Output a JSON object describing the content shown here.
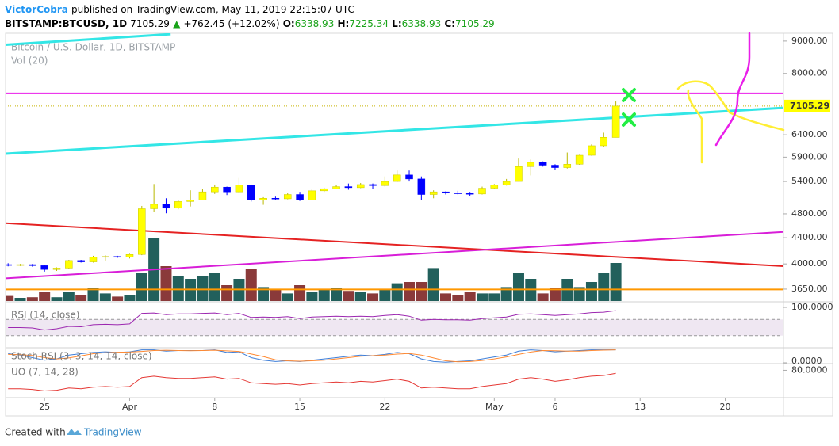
{
  "header": {
    "author": "VictorCobra",
    "published": "published on TradingView.com, May 11, 2019 22:15:07 UTC",
    "symbol": "BITSTAMP:BTCUSD, 1D",
    "change": "+762.45 (+12.02%)",
    "open_label": "O:",
    "high_label": "H:",
    "low_label": "L:",
    "close_label": "C:"
  },
  "footer": {
    "created": "Created with",
    "brand": "TradingView"
  },
  "chart_data": {
    "type": "candlestick",
    "title": "Bitcoin / U.S. Dollar, 1D, BITSTAMP",
    "volume_label": "Vol (20)",
    "x": [
      "2019-03-22",
      "2019-03-23",
      "2019-03-24",
      "2019-03-25",
      "2019-03-26",
      "2019-03-27",
      "2019-03-28",
      "2019-03-29",
      "2019-03-30",
      "2019-03-31",
      "2019-04-01",
      "2019-04-02",
      "2019-04-03",
      "2019-04-04",
      "2019-04-05",
      "2019-04-06",
      "2019-04-07",
      "2019-04-08",
      "2019-04-09",
      "2019-04-10",
      "2019-04-11",
      "2019-04-12",
      "2019-04-13",
      "2019-04-14",
      "2019-04-15",
      "2019-04-16",
      "2019-04-17",
      "2019-04-18",
      "2019-04-19",
      "2019-04-20",
      "2019-04-21",
      "2019-04-22",
      "2019-04-23",
      "2019-04-24",
      "2019-04-25",
      "2019-04-26",
      "2019-04-27",
      "2019-04-28",
      "2019-04-29",
      "2019-04-30",
      "2019-05-01",
      "2019-05-02",
      "2019-05-03",
      "2019-05-04",
      "2019-05-05",
      "2019-05-06",
      "2019-05-07",
      "2019-05-08",
      "2019-05-09",
      "2019-05-10",
      "2019-05-11"
    ],
    "open": [
      3990,
      3985,
      3990,
      3975,
      3920,
      3940,
      4050,
      4030,
      4100,
      4110,
      4100,
      4140,
      4890,
      4970,
      4900,
      5020,
      5050,
      5200,
      5290,
      5200,
      5330,
      5050,
      5080,
      5070,
      5150,
      5050,
      5220,
      5260,
      5300,
      5280,
      5340,
      5320,
      5400,
      5530,
      5450,
      5150,
      5200,
      5180,
      5170,
      5160,
      5270,
      5330,
      5400,
      5700,
      5790,
      5730,
      5680,
      5750,
      5940,
      6150,
      6338.93
    ],
    "high": [
      4010,
      4000,
      4000,
      3990,
      3950,
      4060,
      4060,
      4120,
      4130,
      4120,
      4150,
      4940,
      5350,
      5080,
      5050,
      5230,
      5260,
      5340,
      5300,
      5470,
      5340,
      5100,
      5110,
      5180,
      5200,
      5250,
      5280,
      5330,
      5360,
      5370,
      5360,
      5500,
      5620,
      5620,
      5500,
      5230,
      5210,
      5220,
      5200,
      5300,
      5350,
      5450,
      5870,
      5850,
      5810,
      5750,
      6000,
      5950,
      6180,
      6450,
      7225.34
    ],
    "low": [
      3965,
      3970,
      3960,
      3890,
      3900,
      3930,
      4020,
      4020,
      4050,
      4090,
      4080,
      4130,
      4830,
      4810,
      4880,
      4930,
      5040,
      5160,
      5140,
      5180,
      5020,
      4960,
      5050,
      5060,
      5030,
      5040,
      5200,
      5250,
      5240,
      5270,
      5250,
      5300,
      5390,
      5400,
      5040,
      5080,
      5150,
      5150,
      5120,
      5150,
      5260,
      5320,
      5400,
      5520,
      5700,
      5630,
      5660,
      5740,
      5930,
      6120,
      6338.93
    ],
    "close": [
      3985,
      3990,
      3975,
      3920,
      3940,
      4050,
      4030,
      4100,
      4110,
      4100,
      4140,
      4890,
      4970,
      4900,
      5020,
      5050,
      5200,
      5290,
      5200,
      5330,
      5050,
      5080,
      5070,
      5150,
      5050,
      5220,
      5260,
      5300,
      5280,
      5340,
      5320,
      5400,
      5530,
      5450,
      5150,
      5200,
      5180,
      5170,
      5160,
      5270,
      5330,
      5400,
      5700,
      5790,
      5730,
      5680,
      5750,
      5940,
      6150,
      6342.84,
      7105.29
    ],
    "volume": [
      8,
      5,
      6,
      15,
      6,
      14,
      10,
      20,
      12,
      7,
      10,
      45,
      100,
      55,
      40,
      35,
      40,
      45,
      25,
      35,
      50,
      22,
      18,
      12,
      25,
      15,
      18,
      20,
      16,
      14,
      12,
      18,
      28,
      30,
      30,
      52,
      12,
      10,
      15,
      12,
      12,
      22,
      45,
      35,
      12,
      20,
      35,
      22,
      30,
      45,
      60
    ],
    "up_color": "#ffff00",
    "down_color": "#0000ff",
    "volume_up_color": "#22605c",
    "volume_down_color": "#8a3a3a",
    "ylim": [
      3495,
      9260
    ],
    "log": true,
    "vlim": [
      0,
      125
    ],
    "yticks": [
      {
        "value": 3650,
        "label": "3650.00"
      },
      {
        "value": 4000,
        "label": "4000.00"
      },
      {
        "value": 4400,
        "label": "4400.00"
      },
      {
        "value": 4800,
        "label": "4800.00"
      },
      {
        "value": 5400,
        "label": "5400.00"
      },
      {
        "value": 5900,
        "label": "5900.00"
      },
      {
        "value": 6400,
        "label": "6400.00"
      },
      {
        "value": 8000,
        "label": "8000.00"
      },
      {
        "value": 9000,
        "label": "9000.00"
      }
    ],
    "xlim": [
      "2019-03-21T19:00",
      "2019-05-24T19:00"
    ],
    "xticks": [
      {
        "value": "2019-03-25",
        "label": "25"
      },
      {
        "value": "2019-04-01",
        "label": "Apr"
      },
      {
        "value": "2019-04-08",
        "label": "8"
      },
      {
        "value": "2019-04-15",
        "label": "15"
      },
      {
        "value": "2019-04-22",
        "label": "22"
      },
      {
        "value": "2019-05-01",
        "label": "May"
      },
      {
        "value": "2019-05-06",
        "label": "6"
      },
      {
        "value": "2019-05-13",
        "label": "13"
      },
      {
        "value": "2019-05-20",
        "label": "20"
      }
    ],
    "hlines": [
      {
        "value": 7440,
        "color": "#e91ee9"
      },
      {
        "value": 3645,
        "color": "#ff9800"
      }
    ],
    "last_price_color": "#ffff00",
    "lines": [
      {
        "from": [
          "2019-03-21T19:00",
          5975
        ],
        "to": [
          "2019-05-24T19:00",
          7060
        ],
        "color": "#33e6e6"
      },
      {
        "from": [
          "2019-03-21T19:00",
          8880
        ],
        "to": [
          "2019-04-04T09:00",
          9230
        ],
        "color": "#33e6e6"
      },
      {
        "from": [
          "2019-03-21T19:00",
          4640
        ],
        "to": [
          "2019-05-24T19:00",
          3968
        ],
        "color": "#e52222"
      },
      {
        "from": [
          "2019-03-21T19:00",
          3795
        ],
        "to": [
          "2019-05-24T19:00",
          4495
        ],
        "color": "#d81ed8"
      }
    ],
    "indicators": [
      {
        "name": "RSI (14, close)",
        "ylim": [
          0,
          100
        ],
        "yticks": [
          {
            "value": 100,
            "label": "100.0000"
          }
        ],
        "bands": [
          70,
          30
        ],
        "series": [
          {
            "color": "#9c27b0",
            "values": [
              50,
              50,
              49,
              44,
              47,
              53,
              52,
              57,
              58,
              57,
              59,
              85,
              86,
              82,
              84,
              84,
              85,
              86,
              82,
              85,
              75,
              76,
              75,
              77,
              72,
              76,
              77,
              78,
              77,
              78,
              77,
              80,
              82,
              78,
              68,
              70,
              69,
              69,
              68,
              72,
              74,
              76,
              83,
              84,
              82,
              80,
              82,
              84,
              87,
              88,
              92
            ]
          }
        ]
      },
      {
        "name": "Stoch RSI (3, 3, 14, 14, close)",
        "ylim": [
          0,
          110
        ],
        "yticks": [
          {
            "value": 0,
            "label": "0.0000"
          }
        ],
        "series": [
          {
            "color": "#3f7fd8",
            "values": [
              70,
              60,
              40,
              20,
              30,
              60,
              70,
              80,
              85,
              80,
              85,
              100,
              100,
              90,
              95,
              95,
              95,
              100,
              80,
              85,
              40,
              20,
              10,
              15,
              10,
              20,
              30,
              40,
              50,
              60,
              55,
              65,
              80,
              70,
              30,
              10,
              5,
              10,
              15,
              30,
              45,
              60,
              90,
              100,
              95,
              85,
              90,
              95,
              100,
              100,
              100
            ]
          },
          {
            "color": "#ff8a33",
            "values": [
              65,
              63,
              57,
              40,
              30,
              37,
              53,
              70,
              78,
              82,
              83,
              88,
              95,
              97,
              95,
              93,
              95,
              97,
              92,
              88,
              68,
              48,
              23,
              15,
              12,
              15,
              20,
              30,
              40,
              50,
              55,
              60,
              67,
              72,
              60,
              37,
              15,
              8,
              10,
              18,
              30,
              45,
              65,
              83,
              95,
              93,
              90,
              90,
              95,
              98,
              100
            ]
          }
        ]
      },
      {
        "name": "UO (7, 14, 28)",
        "ylim": [
          45,
          88
        ],
        "yticks": [
          {
            "value": 80,
            "label": "80.0000"
          }
        ],
        "series": [
          {
            "color": "#e53935",
            "values": [
              55,
              55,
              54,
              52,
              53,
              56,
              55,
              57,
              58,
              57,
              58,
              70,
              72,
              70,
              69,
              69,
              70,
              71,
              68,
              69,
              63,
              62,
              61,
              62,
              60,
              62,
              63,
              64,
              63,
              65,
              64,
              66,
              68,
              65,
              56,
              57,
              56,
              55,
              55,
              58,
              60,
              62,
              68,
              70,
              68,
              65,
              67,
              70,
              72,
              73,
              76
            ]
          }
        ]
      }
    ]
  }
}
